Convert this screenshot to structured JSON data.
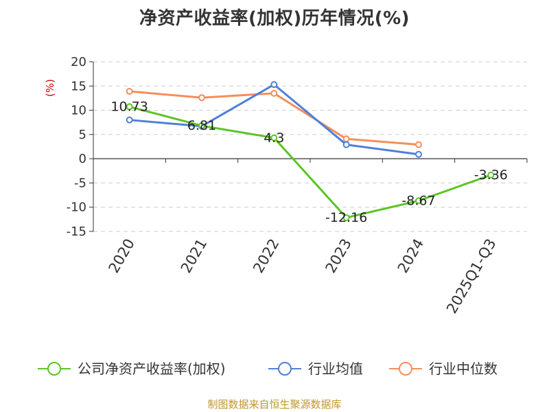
{
  "chart_data": {
    "type": "line",
    "title": "净资产收益率(加权)历年情况(%)",
    "unit": "(%)",
    "categories": [
      "2020",
      "2021",
      "2022",
      "2023",
      "2024",
      "2025Q1-Q3"
    ],
    "ylim": [
      -15,
      20
    ],
    "yticks": [
      "20",
      "15",
      "10",
      "5",
      "0",
      "-5",
      "-10",
      "-15"
    ],
    "grid": true,
    "legend_position": "bottom",
    "series": [
      {
        "name": "公司净资产收益率(加权)",
        "color": "#5bc425",
        "values": [
          10.73,
          6.81,
          4.3,
          -12.16,
          -8.67,
          -3.36
        ],
        "labels": [
          "10.73",
          "6.81",
          "4.3",
          "-12.16",
          "-8.67",
          "-3.36"
        ]
      },
      {
        "name": "行业均值",
        "color": "#4f7fd8",
        "values": [
          8.0,
          6.7,
          15.3,
          2.9,
          0.9,
          null
        ]
      },
      {
        "name": "行业中位数",
        "color": "#f58d5b",
        "values": [
          13.9,
          12.6,
          13.5,
          4.1,
          2.9,
          null
        ]
      }
    ]
  },
  "footer": {
    "source": "制图数据来自恒生聚源数据库"
  }
}
